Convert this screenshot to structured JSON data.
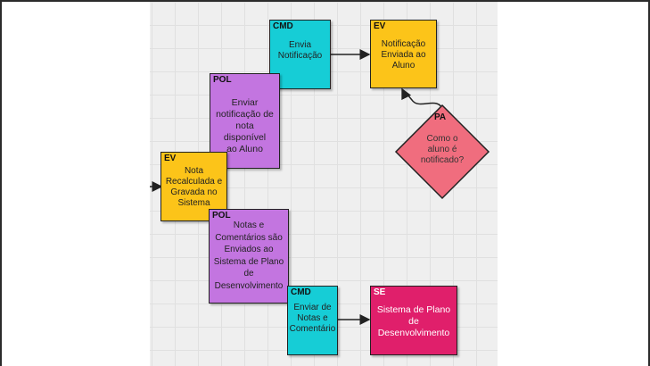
{
  "colors": {
    "cmd": "#16cdd6",
    "ev": "#fcc419",
    "pol": "#c375e0",
    "se": "#e01f6b",
    "pa": "#f06d7e"
  },
  "cards": {
    "cmd_envia": {
      "tag": "CMD",
      "text": "Envia\nNotificação"
    },
    "ev_notificacao": {
      "tag": "EV",
      "text": "Notificação\nEnviada ao\nAluno"
    },
    "pol_enviar_notificacao": {
      "tag": "POL",
      "text": "Enviar\nnotificação de\nnota disponível\nao Aluno"
    },
    "ev_nota_recalculada": {
      "tag": "EV",
      "text": "Nota\nRecalculada e\nGravada no\nSistema"
    },
    "pol_notas_comentarios": {
      "tag": "POL",
      "text": "Notas e\nComentários são\nEnviados ao\nSistema de Plano\nde\nDesenvolvimento"
    },
    "cmd_enviar_notas": {
      "tag": "CMD",
      "text": "Enviar de\nNotas e\nComentário"
    },
    "se_sistema": {
      "tag": "SE",
      "text": "Sistema de Plano\nde\nDesenvolvimento"
    },
    "pa_question": {
      "tag": "PA",
      "text": "Como o\naluno é\nnotificado?"
    }
  }
}
